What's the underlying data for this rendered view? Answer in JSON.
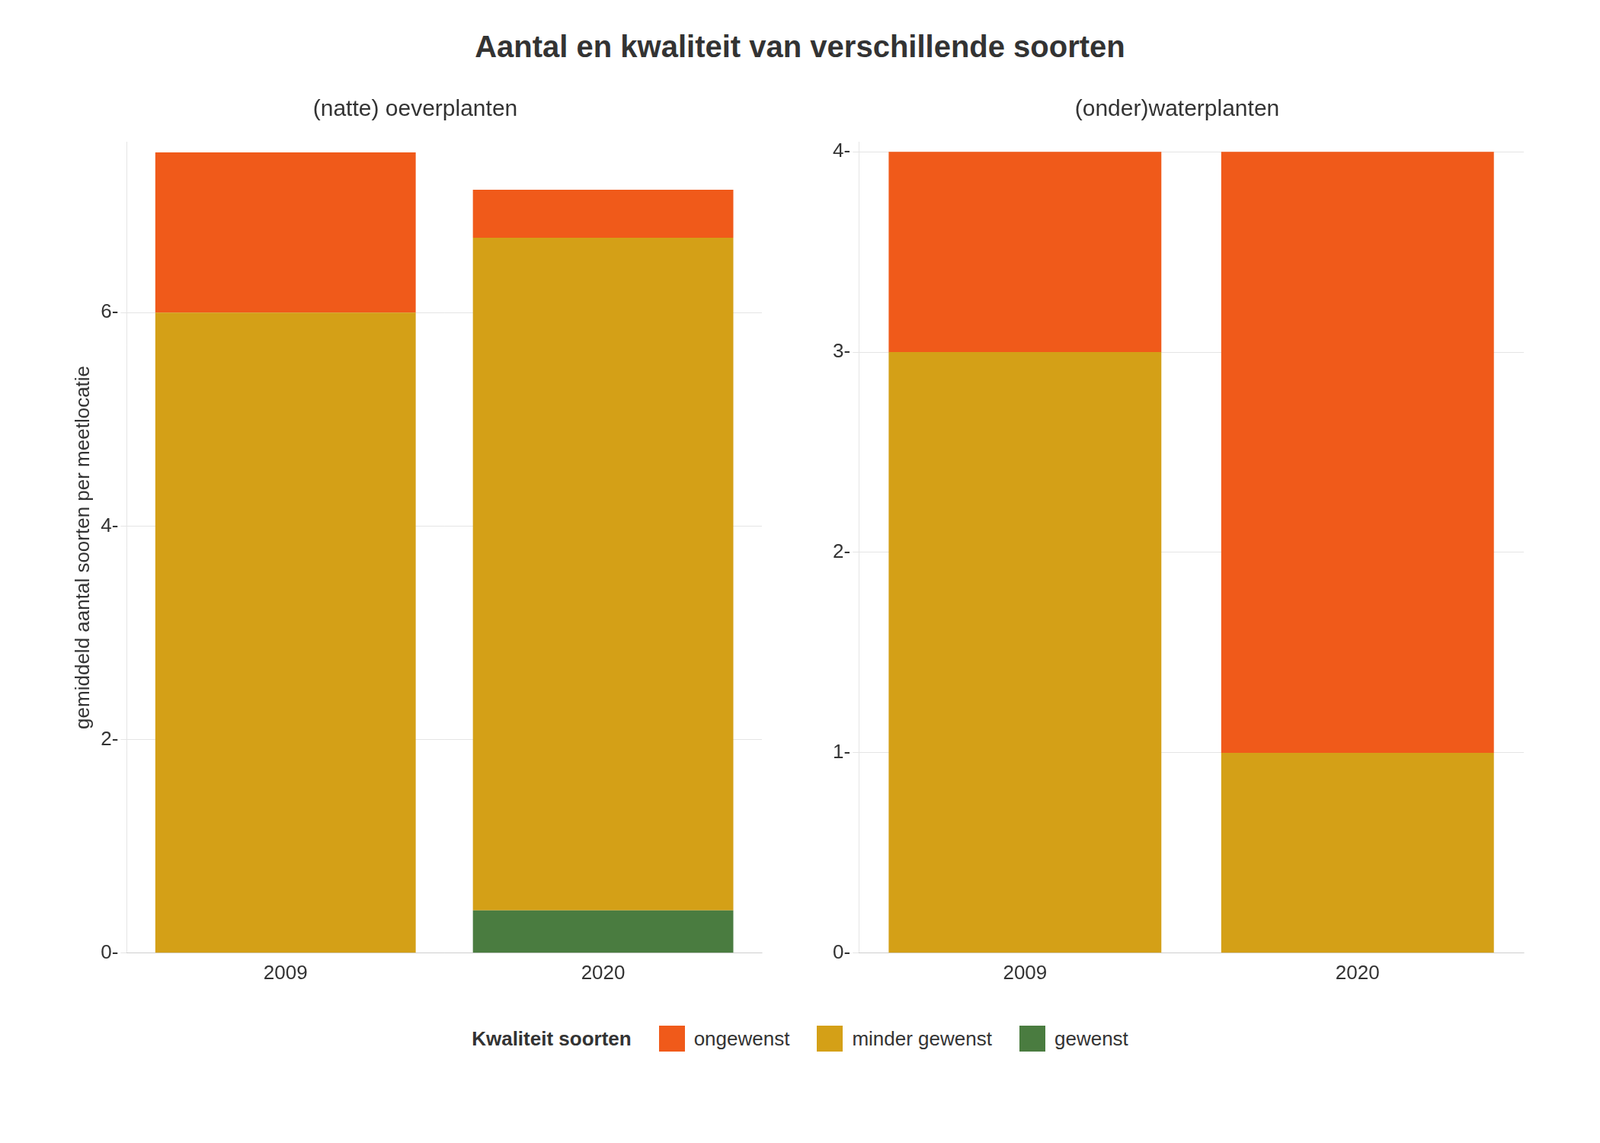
{
  "chart_data": [
    {
      "type": "bar",
      "stacked": true,
      "title": "Aantal en kwaliteit van verschillende soorten",
      "subtitle": "(natte) oeverplanten",
      "ylabel": "gemiddeld aantal soorten per meetlocatie",
      "legend_title": "Kwaliteit soorten",
      "legend": "bottom",
      "categories": [
        "2009",
        "2020"
      ],
      "series": [
        {
          "name": "ongewenst",
          "color": "#F05A1A",
          "values": [
            1.5,
            0.45
          ]
        },
        {
          "name": "minder gewenst",
          "color": "#D4A017",
          "values": [
            6.0,
            6.3
          ]
        },
        {
          "name": "gewenst",
          "color": "#4A7C40",
          "values": [
            0.0,
            0.4
          ]
        }
      ],
      "ylim": [
        0,
        7.6
      ],
      "yticks": [
        {
          "value": 0,
          "label": "0-"
        },
        {
          "value": 2,
          "label": "2-"
        },
        {
          "value": 4,
          "label": "4-"
        },
        {
          "value": 6,
          "label": "6-"
        }
      ],
      "grid": true
    },
    {
      "type": "bar",
      "stacked": true,
      "subtitle": "(onder)waterplanten",
      "categories": [
        "2009",
        "2020"
      ],
      "series": [
        {
          "name": "ongewenst",
          "color": "#F05A1A",
          "values": [
            1.0,
            3.0
          ]
        },
        {
          "name": "minder gewenst",
          "color": "#D4A017",
          "values": [
            3.0,
            1.0
          ]
        },
        {
          "name": "gewenst",
          "color": "#4A7C40",
          "values": [
            0.0,
            0.0
          ]
        }
      ],
      "ylim": [
        0,
        4.05
      ],
      "yticks": [
        {
          "value": 0,
          "label": "0-"
        },
        {
          "value": 1,
          "label": "1-"
        },
        {
          "value": 2,
          "label": "2-"
        },
        {
          "value": 3,
          "label": "3-"
        },
        {
          "value": 4,
          "label": "4-"
        }
      ],
      "grid": true
    }
  ]
}
